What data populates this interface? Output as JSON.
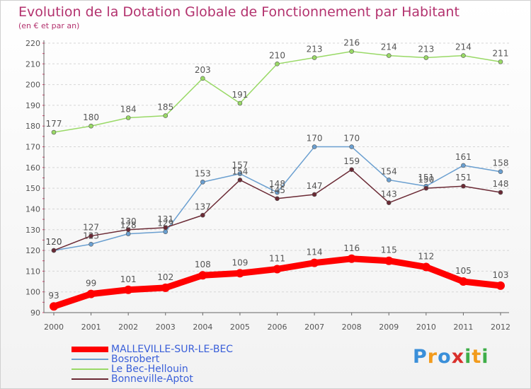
{
  "title": "Evolution de la Dotation Globale de Fonctionnement par Habitant",
  "subtitle": "(en € et par an)",
  "logo": {
    "text": "Proxiti",
    "letters": [
      "P",
      "r",
      "o",
      "x",
      "i",
      "t",
      "i"
    ],
    "colors": [
      "#3a8fd9",
      "#f29b1d",
      "#3a8fd9",
      "#d9302c",
      "#3fae49",
      "#f29b1d",
      "#3fae49"
    ]
  },
  "chart_data": {
    "type": "line",
    "title": "Evolution de la Dotation Globale de Fonctionnement par Habitant",
    "subtitle": "(en € et par an)",
    "xlabel": "",
    "ylabel": "",
    "x": [
      "2000",
      "2001",
      "2002",
      "2003",
      "2004",
      "2005",
      "2006",
      "2007",
      "2008",
      "2009",
      "2010",
      "2011",
      "2012"
    ],
    "ylim": [
      90,
      220
    ],
    "yticks": [
      90,
      100,
      110,
      120,
      130,
      140,
      150,
      160,
      170,
      180,
      190,
      200,
      210,
      220
    ],
    "grid": "horizontal",
    "legend_position": "bottom-left",
    "series": [
      {
        "name": "MALLEVILLE-SUR-LE-BEC",
        "color": "#ff0000",
        "values": [
          93,
          99,
          101,
          102,
          108,
          109,
          111,
          114,
          116,
          115,
          112,
          105,
          103
        ]
      },
      {
        "name": "Bosrobert",
        "color": "#6a9fd0",
        "values": [
          120,
          123,
          128,
          129,
          153,
          157,
          148,
          170,
          170,
          154,
          151,
          161,
          158
        ]
      },
      {
        "name": "Le Bec-Hellouin",
        "color": "#99d966",
        "values": [
          177,
          180,
          184,
          185,
          203,
          191,
          210,
          213,
          216,
          214,
          213,
          214,
          211
        ]
      },
      {
        "name": "Bonneville-Aptot",
        "color": "#6b2a35",
        "values": [
          120,
          127,
          130,
          131,
          137,
          154,
          145,
          147,
          159,
          143,
          150,
          151,
          148
        ]
      }
    ]
  }
}
